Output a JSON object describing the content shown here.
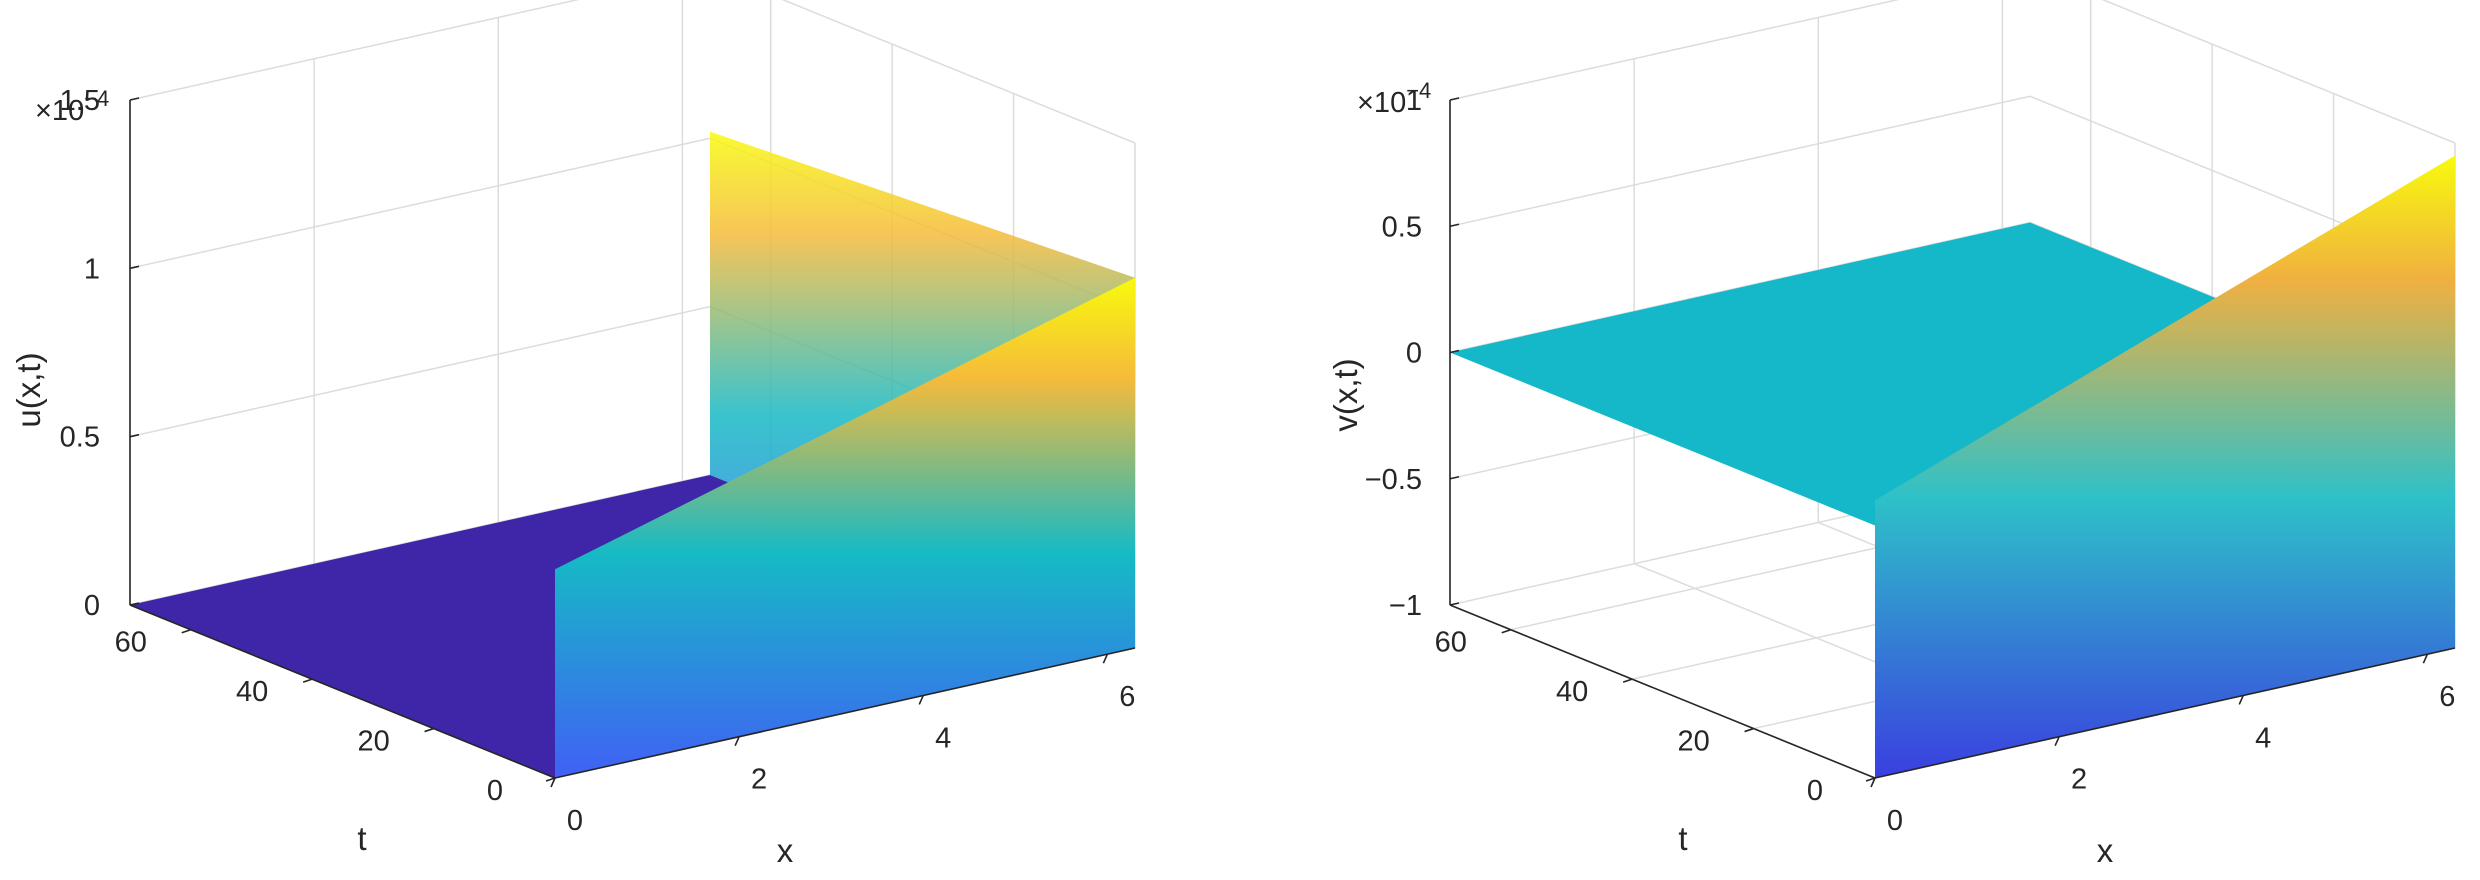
{
  "colors": {
    "floor_u": "#3f26a8",
    "wall_u_bottom": "#4060f5",
    "wall_u_mid": "#16bac5",
    "wall_u_high": "#f5bb3a",
    "wall_u_top": "#f8fa0d",
    "flat_v": "#14b8c8",
    "wall_v_bottom": "#3a3fe0",
    "wall_v_mid": "#2ec1c8",
    "wall_v_high": "#f0b040",
    "wall_v_top": "#f8fa0d",
    "grid": "#dcdcdc",
    "box": "#262626",
    "text": "#262626"
  },
  "chart_data": [
    {
      "type": "surface",
      "xlabel": "x",
      "ylabel": "t",
      "zlabel": "u(x,t)",
      "exponent_label": "×10",
      "exponent_power": "−4",
      "xlim": [
        0,
        6.3
      ],
      "ylim": [
        0,
        70
      ],
      "zlim": [
        0,
        1.5
      ],
      "x_ticks": [
        "0",
        "2",
        "4",
        "6"
      ],
      "x_tick_values": [
        0,
        2,
        4,
        6
      ],
      "y_ticks": [
        "0",
        "20",
        "40",
        "60"
      ],
      "y_tick_values": [
        0,
        20,
        40,
        60
      ],
      "z_ticks": [
        "0",
        "0.5",
        "1",
        "1.5"
      ],
      "z_tick_values": [
        0,
        0.5,
        1,
        1.5
      ],
      "grid": true,
      "floor_value": 0,
      "wall_t": 0,
      "wall_top_left_value": 0.62,
      "wall_top_right_value": 1.1,
      "wall_right_edge_value": 1.02
    },
    {
      "type": "surface",
      "xlabel": "x",
      "ylabel": "t",
      "zlabel": "v(x,t)",
      "exponent_label": "×10",
      "exponent_power": "−4",
      "xlim": [
        0,
        6.3
      ],
      "ylim": [
        0,
        70
      ],
      "zlim": [
        -1,
        1
      ],
      "x_ticks": [
        "0",
        "2",
        "4",
        "6"
      ],
      "x_tick_values": [
        0,
        2,
        4,
        6
      ],
      "y_ticks": [
        "0",
        "20",
        "40",
        "60"
      ],
      "y_tick_values": [
        0,
        20,
        40,
        60
      ],
      "z_ticks": [
        "−1",
        "−0.5",
        "0",
        "0.5",
        "1"
      ],
      "z_tick_values": [
        -1,
        -0.5,
        0,
        0.5,
        1
      ],
      "grid": true,
      "flat_value": 0,
      "wall_t": 0,
      "wall_bottom_value": -1,
      "wall_top_left_value": 0.1,
      "wall_top_right_value": 0.95
    }
  ]
}
